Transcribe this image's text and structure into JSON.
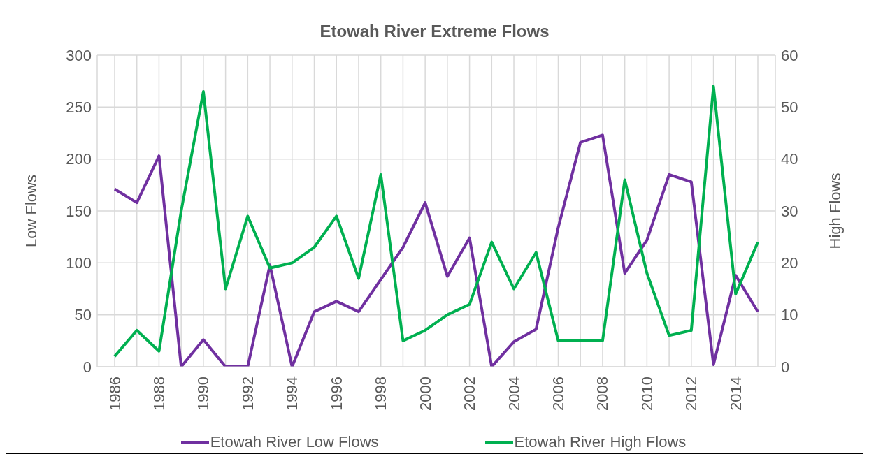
{
  "chart_data": {
    "type": "line",
    "title": "Etowah River Extreme Flows",
    "ylabel": "Low Flows",
    "y2label": "High Flows",
    "categories": [
      "1986",
      null,
      "1988",
      null,
      "1990",
      null,
      "1992",
      null,
      "1994",
      null,
      "1996",
      null,
      "1998",
      null,
      "2000",
      null,
      "2002",
      null,
      "2004",
      null,
      "2006",
      null,
      "2008",
      null,
      "2010",
      null,
      "2012",
      null,
      "2014",
      null
    ],
    "series": [
      {
        "name": "Etowah River Low Flows",
        "color": "#7030a0",
        "values": [
          171,
          158,
          203,
          0,
          26,
          0,
          0,
          98,
          0,
          53,
          63,
          53,
          84,
          115,
          158,
          87,
          124,
          0,
          24,
          36,
          134,
          216,
          223,
          90,
          122,
          185,
          178,
          2,
          88,
          53
        ]
      },
      {
        "name": "Etowah River High Flows",
        "color": "#00b050",
        "axis": "y2",
        "values": [
          2,
          7,
          3,
          30,
          53,
          15,
          29,
          19,
          20,
          23,
          29,
          17,
          37,
          5,
          7,
          10,
          12,
          24,
          15,
          22,
          5,
          5,
          5,
          36,
          18,
          6,
          7,
          54,
          14,
          24
        ]
      }
    ],
    "ylim": [
      0,
      300
    ],
    "yticks": [
      0,
      50,
      100,
      150,
      200,
      250,
      300
    ],
    "y2lim": [
      0,
      60
    ],
    "y2ticks": [
      0,
      10,
      20,
      30,
      40,
      50,
      60
    ],
    "grid": true,
    "legend": "bottom",
    "marker": "none",
    "line_style": "solid"
  }
}
